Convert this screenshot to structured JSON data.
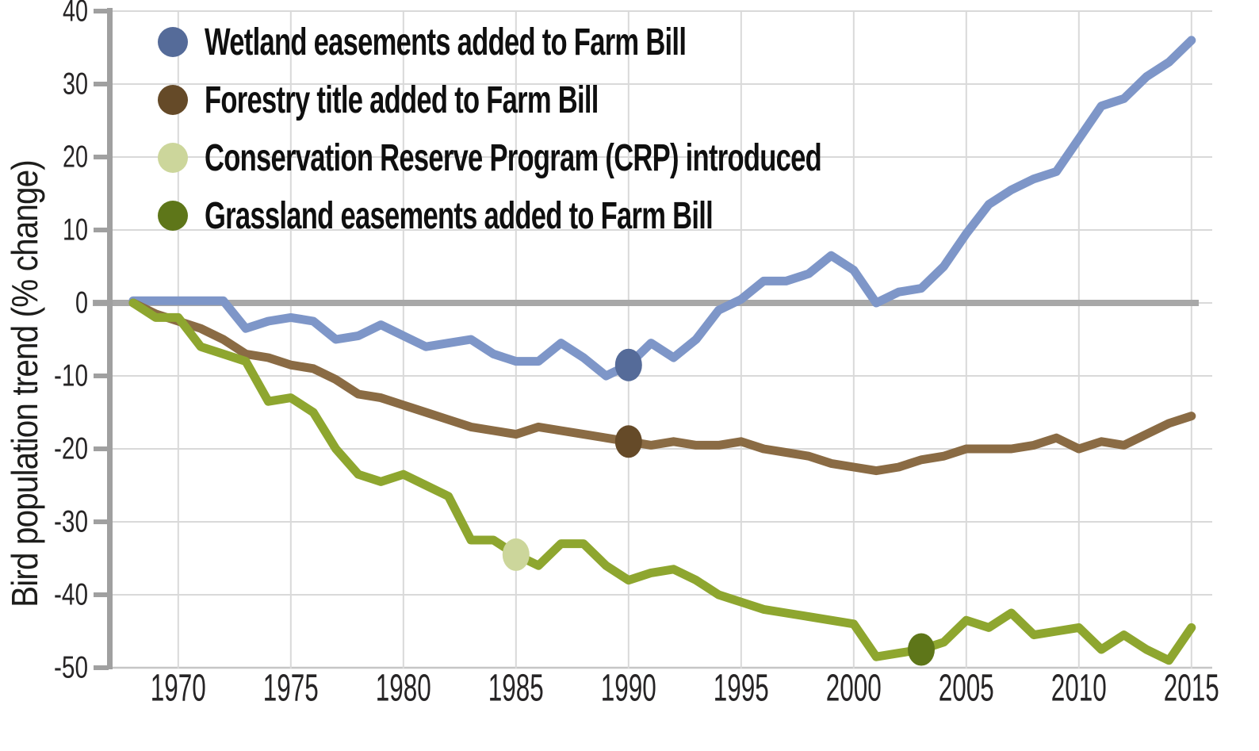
{
  "chart_data": {
    "type": "line",
    "title": "",
    "xlabel": "",
    "ylabel": "Bird population trend (% change)",
    "xlim": [
      1968,
      2015
    ],
    "ylim": [
      -50,
      40
    ],
    "grid": true,
    "legend_position": "top-left-inside",
    "x_ticks": [
      1970,
      1975,
      1980,
      1985,
      1990,
      1995,
      2000,
      2005,
      2010,
      2015
    ],
    "y_ticks": [
      40,
      30,
      20,
      10,
      0,
      -10,
      -20,
      -30,
      -40,
      -50
    ],
    "x_start_year": 1968,
    "series": [
      {
        "id": "wetland-birds",
        "color": "#7e96c8",
        "values": [
          0.3,
          0.3,
          0.3,
          0.3,
          0.3,
          -3.5,
          -2.5,
          -2,
          -2.5,
          -5,
          -4.5,
          -3,
          -4.5,
          -6,
          -5.5,
          -5,
          -7,
          -8,
          -8,
          -5.5,
          -7.5,
          -10,
          -8.5,
          -5.5,
          -7.5,
          -5,
          -1,
          0.5,
          3,
          3,
          4,
          6.5,
          4.5,
          0,
          1.5,
          2,
          5,
          9.5,
          13.5,
          15.5,
          17,
          18,
          22.5,
          27,
          28,
          31,
          33,
          36
        ]
      },
      {
        "id": "forest-birds",
        "color": "#8a6b44",
        "values": [
          0,
          -1.5,
          -2.5,
          -3.5,
          -5,
          -7,
          -7.5,
          -8.5,
          -9,
          -10.5,
          -12.5,
          -13,
          -14,
          -15,
          -16,
          -17,
          -17.5,
          -18,
          -17,
          -17.5,
          -18,
          -18.5,
          -19,
          -19.5,
          -19,
          -19.5,
          -19.5,
          -19,
          -20,
          -20.5,
          -21,
          -22,
          -22.5,
          -23,
          -22.5,
          -21.5,
          -21,
          -20,
          -20,
          -20,
          -19.5,
          -18.5,
          -20,
          -19,
          -19.5,
          -18,
          -16.5,
          -15.5
        ]
      },
      {
        "id": "grassland-birds",
        "color": "#8ea62f",
        "values": [
          0,
          -2,
          -2,
          -6,
          -7,
          -8,
          -13.5,
          -13,
          -15,
          -20,
          -23.5,
          -24.5,
          -23.5,
          -25,
          -26.5,
          -32.5,
          -32.5,
          -34.5,
          -36,
          -33,
          -33,
          -36,
          -38,
          -37,
          -36.5,
          -38,
          -40,
          -41,
          -42,
          -42.5,
          -43,
          -43.5,
          -44,
          -48.5,
          -48,
          -47.5,
          -46.5,
          -43.5,
          -44.5,
          -42.5,
          -45.5,
          -45,
          -44.5,
          -47.5,
          -45.5,
          -47.5,
          -49,
          -44.5
        ]
      }
    ],
    "event_markers": [
      {
        "id": "wetland-easements",
        "year": 1990,
        "value": -8.5,
        "color": "#556b99"
      },
      {
        "id": "forestry-title",
        "year": 1990,
        "value": -19,
        "color": "#654a28"
      },
      {
        "id": "crp-introduced",
        "year": 1985,
        "value": -34.5,
        "color": "#ccd69b"
      },
      {
        "id": "grassland-easements",
        "year": 2003,
        "value": -47.5,
        "color": "#5e7619"
      }
    ]
  },
  "legend": {
    "items": [
      {
        "label": "Wetland easements added to Farm Bill",
        "color": "#556b99"
      },
      {
        "label": "Forestry title added to Farm Bill",
        "color": "#654a28"
      },
      {
        "label": "Conservation Reserve Program (CRP) introduced",
        "color": "#ccd69b"
      },
      {
        "label": "Grassland easements added to Farm Bill",
        "color": "#5e7619"
      }
    ]
  },
  "colors": {
    "grid": "#d9d9d9",
    "baseline": "#c6c6c6",
    "axis": "#a0a0a0",
    "zero_line": "#a8a8a8",
    "tick_text": "#262425",
    "background": "#ffffff"
  }
}
